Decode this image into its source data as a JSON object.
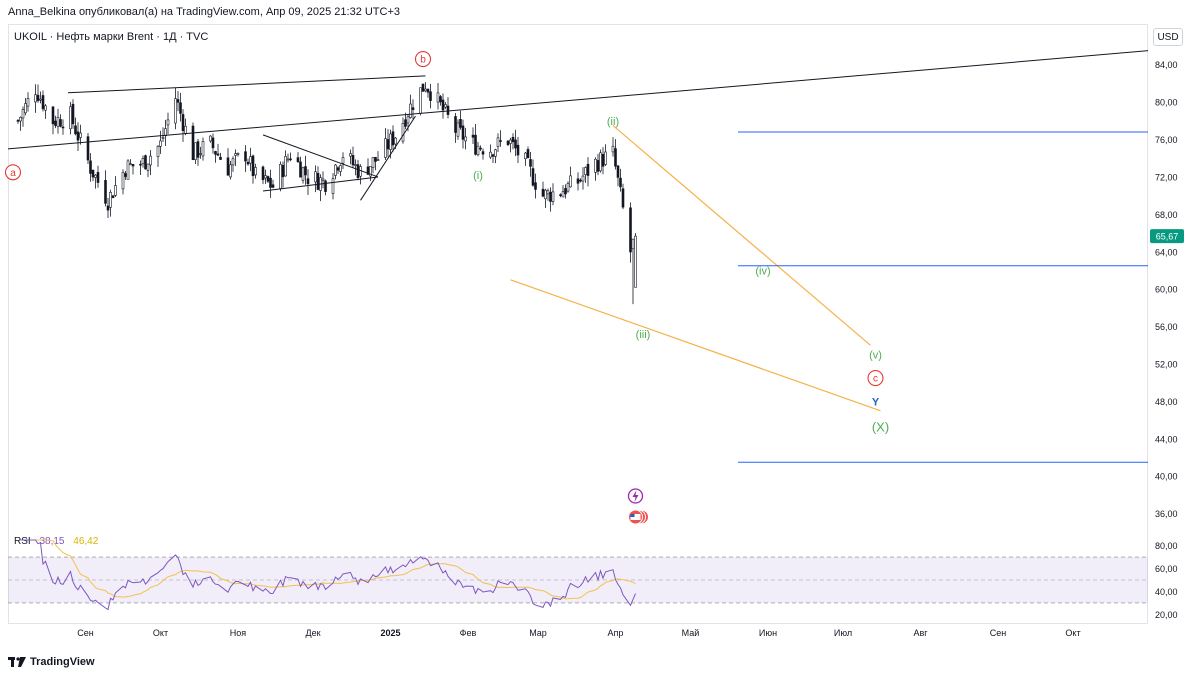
{
  "caption": "Anna_Belkina опубликовал(а) на TradingView.com, Апр 09, 2025 21:32 UTC+3",
  "symbol": "UKOIL · Нефть марки Brent · 1Д · TVC",
  "currency": "USD",
  "brand": "TradingView",
  "colors": {
    "up": "#26a69a",
    "down": "#ef5350",
    "rsi": "#7e57c2",
    "rsi_ma": "#f2c14e",
    "wave_green": "#4caf50",
    "wave_red": "#e53935",
    "wave_blue": "#1e63c6",
    "trend": "#f5b24a",
    "level": "#2962ff",
    "price_badge": "#089981"
  },
  "chart_data": {
    "type": "candlestick",
    "instrument": "UKOIL Brent",
    "timeframe": "1D",
    "ylim": [
      35,
      86
    ],
    "y_ticks": [
      "36,00",
      "40,00",
      "44,00",
      "48,00",
      "52,00",
      "56,00",
      "60,00",
      "64,00",
      "68,00",
      "72,00",
      "76,00",
      "80,00",
      "84,00"
    ],
    "x_ticks": [
      "Сен",
      "Окт",
      "Ноя",
      "Дек",
      "2025",
      "Фев",
      "Мар",
      "Апр",
      "Май",
      "Июн",
      "Июл",
      "Авг",
      "Сен",
      "Окт"
    ],
    "last_price": "65,67",
    "close_path": [
      [
        "2024-08-05",
        78.0
      ],
      [
        "2024-08-12",
        81.5
      ],
      [
        "2024-08-19",
        78.0
      ],
      [
        "2024-08-26",
        78.5
      ],
      [
        "2024-09-03",
        73.0
      ],
      [
        "2024-09-10",
        69.5
      ],
      [
        "2024-09-17",
        73.0
      ],
      [
        "2024-09-24",
        73.5
      ],
      [
        "2024-10-01",
        75.5
      ],
      [
        "2024-10-07",
        80.5
      ],
      [
        "2024-10-14",
        74.5
      ],
      [
        "2024-10-21",
        75.5
      ],
      [
        "2024-10-28",
        73.0
      ],
      [
        "2024-11-04",
        74.5
      ],
      [
        "2024-11-08",
        72.0
      ],
      [
        "2024-11-15",
        71.0
      ],
      [
        "2024-11-22",
        74.5
      ],
      [
        "2024-11-29",
        72.0
      ],
      [
        "2024-12-06",
        71.5
      ],
      [
        "2024-12-13",
        74.5
      ],
      [
        "2024-12-20",
        72.5
      ],
      [
        "2024-12-27",
        74.0
      ],
      [
        "2025-01-03",
        76.5
      ],
      [
        "2025-01-10",
        80.0
      ],
      [
        "2025-01-15",
        82.0
      ],
      [
        "2025-01-20",
        80.0
      ],
      [
        "2025-01-27",
        77.0
      ],
      [
        "2025-02-03",
        75.5
      ],
      [
        "2025-02-10",
        75.0
      ],
      [
        "2025-02-17",
        76.0
      ],
      [
        "2025-02-24",
        73.5
      ],
      [
        "2025-03-03",
        70.0
      ],
      [
        "2025-03-10",
        70.5
      ],
      [
        "2025-03-17",
        71.5
      ],
      [
        "2025-03-24",
        73.5
      ],
      [
        "2025-03-31",
        74.5
      ],
      [
        "2025-04-03",
        70.0
      ],
      [
        "2025-04-07",
        64.0
      ],
      [
        "2025-04-09",
        65.67
      ]
    ],
    "wave_labels": [
      {
        "label": "a",
        "date": "2024-08-03",
        "price": 72.5,
        "color": "wave_red",
        "circled": true
      },
      {
        "label": "b",
        "date": "2025-01-14",
        "price": 84.6,
        "color": "wave_red",
        "circled": true
      },
      {
        "label": "(i)",
        "date": "2025-02-05",
        "price": 72.2,
        "color": "wave_green"
      },
      {
        "label": "(ii)",
        "date": "2025-03-31",
        "price": 78.0,
        "color": "wave_green"
      },
      {
        "label": "(iii)",
        "date": "2025-04-12",
        "price": 55.2,
        "color": "wave_green"
      },
      {
        "label": "(iv)",
        "date": "2025-05-30",
        "price": 62.0,
        "color": "wave_green"
      },
      {
        "label": "(v)",
        "date": "2025-07-14",
        "price": 53.0,
        "color": "wave_green"
      },
      {
        "label": "c",
        "date": "2025-07-14",
        "price": 50.5,
        "color": "wave_red",
        "circled": true
      },
      {
        "label": "Y",
        "date": "2025-07-14",
        "price": 48.0,
        "color": "wave_blue"
      },
      {
        "label": "(X)",
        "date": "2025-07-16",
        "price": 45.2,
        "color": "wave_green"
      }
    ],
    "horizontal_levels": [
      {
        "from": "2025-05-20",
        "price": 76.8
      },
      {
        "from": "2025-05-20",
        "price": 62.5
      },
      {
        "from": "2025-05-20",
        "price": 41.5
      }
    ],
    "rsi": {
      "label": "RSI",
      "value": "38,15",
      "ma_value": "46,42",
      "ylim": [
        15,
        85
      ],
      "y_ticks": [
        "20,00",
        "40,00",
        "60,00",
        "80,00"
      ],
      "band_upper": 70,
      "band_mid": 50,
      "band_lower": 30
    }
  }
}
